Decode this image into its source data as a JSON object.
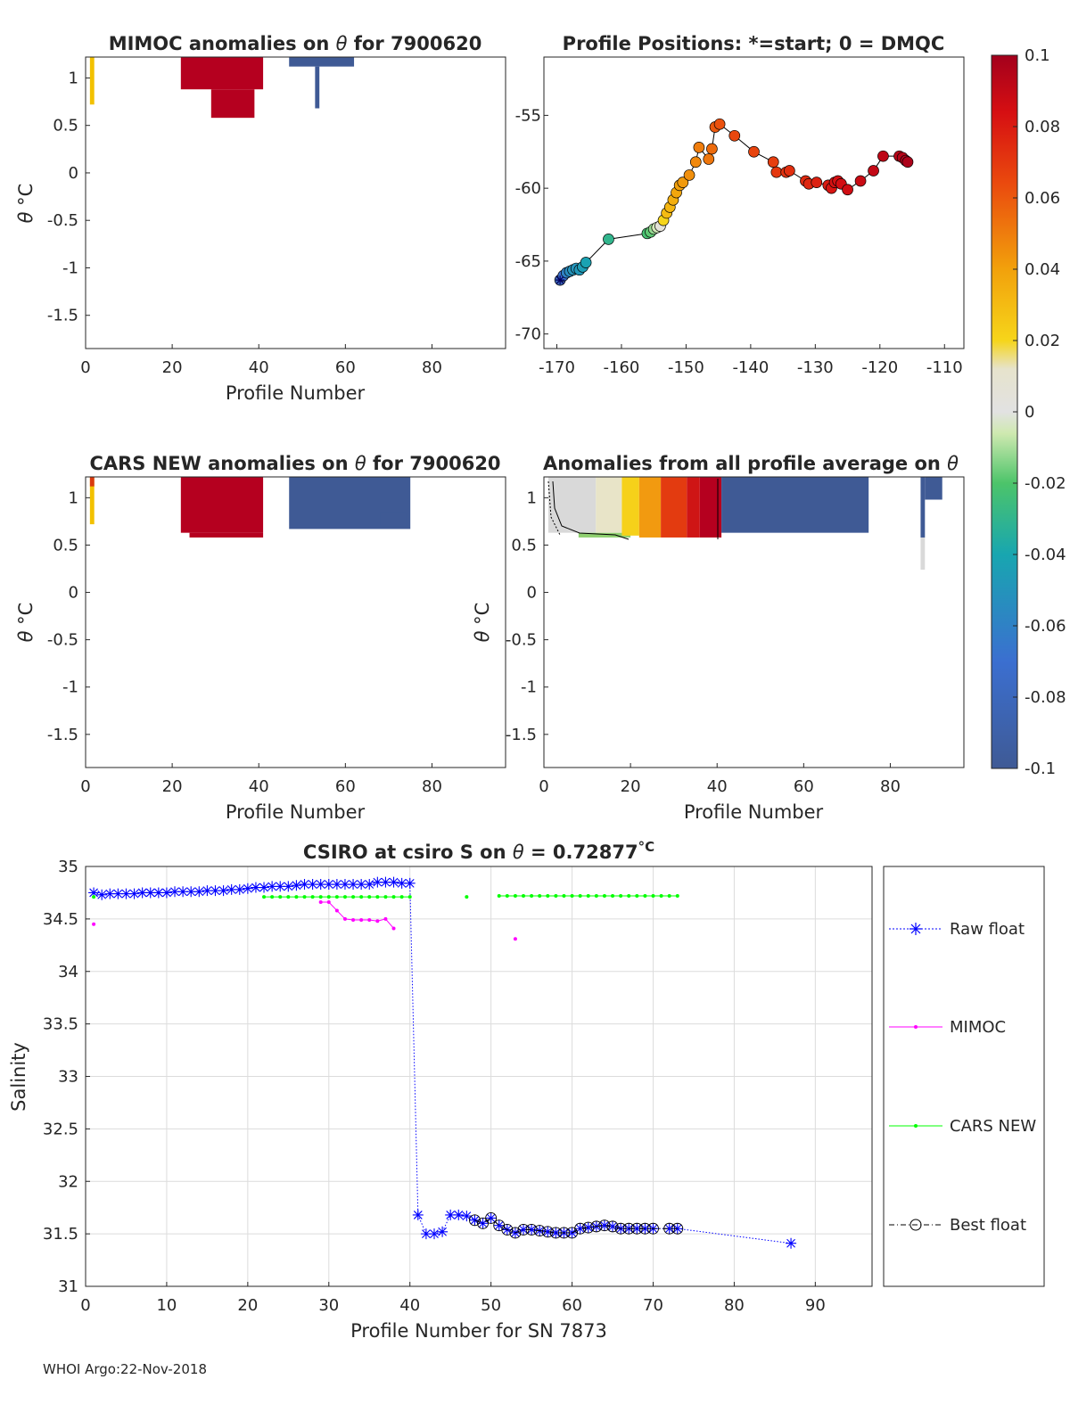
{
  "footer": "WHOI Argo:22-Nov-2018",
  "colors": {
    "red": "#b5001f",
    "blue": "#3f5a95",
    "raw": "#0000ff",
    "mimoc": "#ff00ff",
    "cars": "#00ff00"
  },
  "chart_data": [
    {
      "id": "mimoc-anom",
      "type": "heatmap",
      "title_pre": "MIMOC anomalies on ",
      "title_sym": "θ",
      "title_post": "  for 7900620",
      "xlabel": "Profile Number",
      "ylabel_sym": "θ",
      "ylabel_unit": "°C",
      "xlim": [
        0,
        97
      ],
      "ylim": [
        -1.85,
        1.22
      ],
      "xticks": [
        0,
        20,
        40,
        60,
        80
      ],
      "yticks": [
        1,
        0.5,
        0,
        -0.5,
        -1,
        -1.5
      ],
      "ytick_labels": [
        "1",
        "0.5",
        "0",
        "-0.5",
        "-1",
        "-1.5"
      ],
      "blocks": [
        {
          "x": [
            1,
            2
          ],
          "y": [
            0.72,
            1.22
          ],
          "color": "#f2c100"
        },
        {
          "x": [
            22,
            41
          ],
          "y": [
            0.88,
            1.22
          ],
          "color": "#b5001f"
        },
        {
          "x": [
            29,
            39
          ],
          "y": [
            0.58,
            0.88
          ],
          "color": "#b5001f"
        },
        {
          "x": [
            47,
            62
          ],
          "y": [
            1.12,
            1.22
          ],
          "color": "#3f5a95"
        },
        {
          "x": [
            53,
            54
          ],
          "y": [
            0.68,
            1.12
          ],
          "color": "#3f5a95"
        }
      ]
    },
    {
      "id": "positions",
      "type": "scatter",
      "title": "Profile Positions: *=start; 0 = DMQC",
      "xlim": [
        -172,
        -107
      ],
      "ylim": [
        -71,
        -51
      ],
      "xticks": [
        -170,
        -160,
        -150,
        -140,
        -130,
        -120,
        -110
      ],
      "yticks": [
        -55,
        -60,
        -65,
        -70
      ],
      "colorbar": {
        "min": -0.1,
        "max": 0.1,
        "ticks": [
          0.1,
          0.08,
          0.06,
          0.04,
          0.02,
          0,
          -0.02,
          -0.04,
          -0.06,
          -0.08,
          -0.1
        ],
        "tick_labels": [
          "0.1",
          "0.08",
          "0.06",
          "0.04",
          "0.02",
          "0",
          "-0.02",
          "-0.04",
          "-0.06",
          "-0.08",
          "-0.1"
        ]
      },
      "points": [
        {
          "lon": -169.5,
          "lat": -66.3,
          "v": -0.085
        },
        {
          "lon": -169,
          "lat": -66.0,
          "v": -0.07
        },
        {
          "lon": -168.5,
          "lat": -65.8,
          "v": -0.06
        },
        {
          "lon": -168,
          "lat": -65.7,
          "v": -0.055
        },
        {
          "lon": -167.5,
          "lat": -65.6,
          "v": -0.05
        },
        {
          "lon": -167,
          "lat": -65.5,
          "v": -0.05
        },
        {
          "lon": -166.5,
          "lat": -65.6,
          "v": -0.048
        },
        {
          "lon": -166,
          "lat": -65.4,
          "v": -0.045
        },
        {
          "lon": -165.5,
          "lat": -65.1,
          "v": -0.042
        },
        {
          "lon": -162,
          "lat": -63.5,
          "v": -0.03
        },
        {
          "lon": -156,
          "lat": -63.1,
          "v": -0.022
        },
        {
          "lon": -155.5,
          "lat": -63.0,
          "v": -0.018
        },
        {
          "lon": -155,
          "lat": -62.8,
          "v": -0.012
        },
        {
          "lon": -154.5,
          "lat": -62.7,
          "v": -0.005
        },
        {
          "lon": -154,
          "lat": -62.6,
          "v": 0.005
        },
        {
          "lon": -153.5,
          "lat": -62.2,
          "v": 0.02
        },
        {
          "lon": -153,
          "lat": -61.7,
          "v": 0.03
        },
        {
          "lon": -152.5,
          "lat": -61.3,
          "v": 0.032
        },
        {
          "lon": -152,
          "lat": -60.8,
          "v": 0.035
        },
        {
          "lon": -151.5,
          "lat": -60.3,
          "v": 0.038
        },
        {
          "lon": -151,
          "lat": -59.8,
          "v": 0.04
        },
        {
          "lon": -150.5,
          "lat": -59.6,
          "v": 0.042
        },
        {
          "lon": -149.5,
          "lat": -59.1,
          "v": 0.045
        },
        {
          "lon": -148.5,
          "lat": -58.2,
          "v": 0.047
        },
        {
          "lon": -148,
          "lat": -57.2,
          "v": 0.05
        },
        {
          "lon": -146.5,
          "lat": -58.0,
          "v": 0.052
        },
        {
          "lon": -146,
          "lat": -57.3,
          "v": 0.055
        },
        {
          "lon": -145.5,
          "lat": -55.8,
          "v": 0.06
        },
        {
          "lon": -144.8,
          "lat": -55.6,
          "v": 0.062
        },
        {
          "lon": -142.5,
          "lat": -56.4,
          "v": 0.065
        },
        {
          "lon": -139.5,
          "lat": -57.5,
          "v": 0.066
        },
        {
          "lon": -136.5,
          "lat": -58.2,
          "v": 0.068
        },
        {
          "lon": -136,
          "lat": -58.9,
          "v": 0.07
        },
        {
          "lon": -134.5,
          "lat": -58.9,
          "v": 0.072
        },
        {
          "lon": -134,
          "lat": -58.8,
          "v": 0.073
        },
        {
          "lon": -131.5,
          "lat": -59.5,
          "v": 0.075
        },
        {
          "lon": -131,
          "lat": -59.7,
          "v": 0.076
        },
        {
          "lon": -129.8,
          "lat": -59.6,
          "v": 0.078
        },
        {
          "lon": -128,
          "lat": -59.8,
          "v": 0.08
        },
        {
          "lon": -127.5,
          "lat": -60.0,
          "v": 0.082
        },
        {
          "lon": -127,
          "lat": -59.6,
          "v": 0.083
        },
        {
          "lon": -126.5,
          "lat": -59.5,
          "v": 0.084
        },
        {
          "lon": -126,
          "lat": -59.7,
          "v": 0.085
        },
        {
          "lon": -125,
          "lat": -60.1,
          "v": 0.086
        },
        {
          "lon": -123,
          "lat": -59.5,
          "v": 0.088
        },
        {
          "lon": -121,
          "lat": -58.8,
          "v": 0.09
        },
        {
          "lon": -119.5,
          "lat": -57.8,
          "v": 0.092
        },
        {
          "lon": -117,
          "lat": -57.8,
          "v": 0.094
        },
        {
          "lon": -116.5,
          "lat": -57.9,
          "v": 0.095
        },
        {
          "lon": -116,
          "lat": -58.1,
          "v": 0.096
        },
        {
          "lon": -115.7,
          "lat": -58.2,
          "v": 0.097
        }
      ]
    },
    {
      "id": "cars-anom",
      "type": "heatmap",
      "title_pre": "CARS NEW anomalies on ",
      "title_sym": "θ",
      "title_post": " for 7900620",
      "xlabel": "Profile Number",
      "ylabel_sym": "θ",
      "ylabel_unit": "°C",
      "xlim": [
        0,
        97
      ],
      "ylim": [
        -1.85,
        1.22
      ],
      "xticks": [
        0,
        20,
        40,
        60,
        80
      ],
      "yticks": [
        1,
        0.5,
        0,
        -0.5,
        -1,
        -1.5
      ],
      "ytick_labels": [
        "1",
        "0.5",
        "0",
        "-0.5",
        "-1",
        "-1.5"
      ],
      "blocks": [
        {
          "x": [
            1,
            2
          ],
          "y": [
            0.72,
            1.22
          ],
          "color": "#f2c100"
        },
        {
          "x": [
            1,
            2
          ],
          "y": [
            1.12,
            1.22
          ],
          "color": "#d93a10"
        },
        {
          "x": [
            22,
            41
          ],
          "y": [
            0.63,
            1.22
          ],
          "color": "#b5001f"
        },
        {
          "x": [
            24,
            41
          ],
          "y": [
            0.58,
            0.63
          ],
          "color": "#b5001f"
        },
        {
          "x": [
            47,
            75
          ],
          "y": [
            0.67,
            1.22
          ],
          "color": "#3f5a95"
        },
        {
          "x": [
            68,
            74
          ],
          "y": [
            0.7,
            0.85
          ],
          "color": "#3f5a95"
        }
      ]
    },
    {
      "id": "avg-anom",
      "type": "heatmap",
      "title_pre": "Anomalies from all profile average on ",
      "title_sym": "θ",
      "title_post": "",
      "xlabel": "Profile Number",
      "ylabel_sym": "θ",
      "ylabel_unit": "°C",
      "xlim": [
        0,
        97
      ],
      "ylim": [
        -1.85,
        1.22
      ],
      "xticks": [
        0,
        20,
        40,
        60,
        80
      ],
      "yticks": [
        1,
        0.5,
        0,
        -0.5,
        -1,
        -1.5
      ],
      "ytick_labels": [
        "1",
        "0.5",
        "0",
        "-0.5",
        "-1",
        "-1.5"
      ],
      "blocks": [
        {
          "x": [
            1,
            12
          ],
          "y": [
            0.63,
            1.22
          ],
          "color": "#d9d9d9"
        },
        {
          "x": [
            8,
            20
          ],
          "y": [
            0.58,
            0.63
          ],
          "color": "#8fd070"
        },
        {
          "x": [
            12,
            18
          ],
          "y": [
            0.63,
            1.22
          ],
          "color": "#e8e4c8"
        },
        {
          "x": [
            18,
            22
          ],
          "y": [
            0.6,
            1.22
          ],
          "color": "#f6d11a"
        },
        {
          "x": [
            22,
            27
          ],
          "y": [
            0.58,
            1.22
          ],
          "color": "#f29a10"
        },
        {
          "x": [
            27,
            33
          ],
          "y": [
            0.58,
            1.22
          ],
          "color": "#e33b10"
        },
        {
          "x": [
            33,
            36
          ],
          "y": [
            0.58,
            1.22
          ],
          "color": "#cf1515"
        },
        {
          "x": [
            36,
            41
          ],
          "y": [
            0.58,
            1.22
          ],
          "color": "#b5001f"
        },
        {
          "x": [
            41,
            75
          ],
          "y": [
            0.63,
            1.22
          ],
          "color": "#3f5a95"
        },
        {
          "x": [
            87,
            88
          ],
          "y": [
            0.24,
            0.58
          ],
          "color": "#d9d9d9"
        },
        {
          "x": [
            87,
            88
          ],
          "y": [
            0.58,
            1.22
          ],
          "color": "#3f5a95"
        },
        {
          "x": [
            88,
            92
          ],
          "y": [
            0.98,
            1.22
          ],
          "color": "#3f5a95"
        }
      ]
    },
    {
      "id": "salinity",
      "type": "line",
      "title_pre": "CSIRO at csiro S on ",
      "title_sym": "θ",
      "title_post": " = 0.72877",
      "title_unit": "°C",
      "xlabel": "Profile Number for SN 7873",
      "ylabel": "Salinity",
      "xlim": [
        0,
        97
      ],
      "ylim": [
        31,
        35
      ],
      "xticks": [
        0,
        10,
        20,
        30,
        40,
        50,
        60,
        70,
        80,
        90
      ],
      "yticks": [
        35,
        34.5,
        34,
        33.5,
        33,
        32.5,
        32,
        31.5,
        31
      ],
      "ytick_labels": [
        "35",
        "34.5",
        "34",
        "33.5",
        "33",
        "32.5",
        "32",
        "31.5",
        "31"
      ],
      "legend": [
        "Raw float",
        "MIMOC",
        "CARS NEW",
        "Best float"
      ],
      "series": [
        {
          "name": "Raw float",
          "x": [
            1,
            2,
            3,
            4,
            5,
            6,
            7,
            8,
            9,
            10,
            11,
            12,
            13,
            14,
            15,
            16,
            17,
            18,
            19,
            20,
            21,
            22,
            23,
            24,
            25,
            26,
            27,
            28,
            29,
            30,
            31,
            32,
            33,
            34,
            35,
            36,
            37,
            38,
            39,
            40,
            41,
            42,
            43,
            44,
            45,
            46,
            47,
            48,
            49,
            50,
            51,
            52,
            53,
            54,
            55,
            56,
            57,
            58,
            59,
            60,
            61,
            62,
            63,
            64,
            65,
            66,
            67,
            68,
            69,
            70,
            72,
            73,
            87
          ],
          "y": [
            34.75,
            34.73,
            34.74,
            34.74,
            34.74,
            34.74,
            34.75,
            34.75,
            34.75,
            34.75,
            34.76,
            34.76,
            34.76,
            34.76,
            34.77,
            34.77,
            34.77,
            34.78,
            34.78,
            34.79,
            34.8,
            34.8,
            34.81,
            34.81,
            34.81,
            34.82,
            34.83,
            34.83,
            34.83,
            34.83,
            34.83,
            34.83,
            34.83,
            34.83,
            34.83,
            34.85,
            34.85,
            34.85,
            34.84,
            34.84,
            31.68,
            31.5,
            31.5,
            31.52,
            31.68,
            31.68,
            31.67,
            31.63,
            31.6,
            31.65,
            31.58,
            31.54,
            31.51,
            31.54,
            31.54,
            31.53,
            31.52,
            31.51,
            31.51,
            31.51,
            31.55,
            31.56,
            31.57,
            31.58,
            31.57,
            31.55,
            31.55,
            31.55,
            31.55,
            31.55,
            31.55,
            31.55,
            31.41
          ]
        },
        {
          "name": "MIMOC",
          "x": [
            1,
            29,
            30,
            31,
            32,
            33,
            34,
            35,
            36,
            37,
            38,
            53
          ],
          "y": [
            34.45,
            34.66,
            34.66,
            34.58,
            34.5,
            34.49,
            34.49,
            34.49,
            34.48,
            34.5,
            34.41,
            34.31
          ],
          "breaks": [
            0,
            10
          ]
        },
        {
          "name": "CARS NEW",
          "x": [
            1,
            22,
            23,
            24,
            25,
            26,
            27,
            28,
            29,
            30,
            31,
            32,
            33,
            34,
            35,
            36,
            37,
            38,
            39,
            40,
            47,
            51,
            52,
            53,
            54,
            55,
            56,
            57,
            58,
            59,
            60,
            61,
            62,
            63,
            64,
            65,
            66,
            67,
            68,
            69,
            70,
            71,
            72,
            73
          ],
          "y": [
            34.71,
            34.71,
            34.71,
            34.71,
            34.71,
            34.71,
            34.71,
            34.71,
            34.71,
            34.71,
            34.71,
            34.71,
            34.71,
            34.71,
            34.71,
            34.71,
            34.71,
            34.71,
            34.71,
            34.71,
            34.71,
            34.72,
            34.72,
            34.72,
            34.72,
            34.72,
            34.72,
            34.72,
            34.72,
            34.72,
            34.72,
            34.72,
            34.72,
            34.72,
            34.72,
            34.72,
            34.72,
            34.72,
            34.72,
            34.72,
            34.72,
            34.72,
            34.72,
            34.72
          ],
          "breaks": [
            0,
            19,
            20
          ]
        },
        {
          "name": "Best float",
          "x": [
            48,
            49,
            50,
            51,
            52,
            53,
            54,
            55,
            56,
            57,
            58,
            59,
            60,
            61,
            62,
            63,
            64,
            65,
            66,
            67,
            68,
            69,
            70,
            72,
            73
          ],
          "y": [
            31.63,
            31.6,
            31.65,
            31.58,
            31.54,
            31.51,
            31.54,
            31.54,
            31.53,
            31.52,
            31.51,
            31.51,
            31.51,
            31.55,
            31.56,
            31.57,
            31.58,
            31.57,
            31.55,
            31.55,
            31.55,
            31.55,
            31.55,
            31.55,
            31.55
          ]
        }
      ]
    }
  ]
}
